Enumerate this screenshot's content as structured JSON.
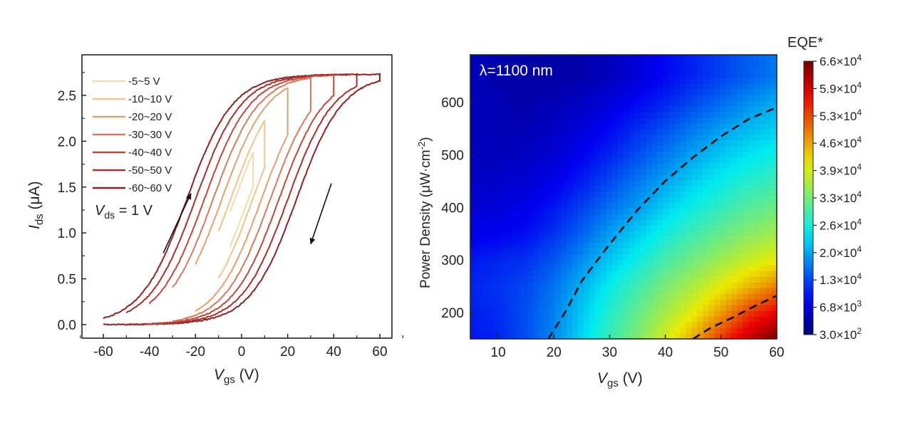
{
  "chart_data": [
    {
      "type": "line",
      "xlabel": {
        "main": "V",
        "sub": "gs",
        "unit": " (V)"
      },
      "ylabel": {
        "main": "I",
        "sub": "ds",
        "unit": " (μA)"
      },
      "xlim": [
        -70,
        70
      ],
      "ylim": [
        -0.08,
        2.85
      ],
      "xticks": [
        "-60",
        "-40",
        "-20",
        "0",
        "20",
        "40",
        "60"
      ],
      "yticks": [
        "0.0",
        "0.5",
        "1.0",
        "1.5",
        "2.0",
        "2.5"
      ],
      "legend_position": "top-left",
      "annotation": {
        "main": "V",
        "sub": "ds",
        "rest": " = 1 V"
      },
      "series": [
        {
          "name": "-5~5 V",
          "sweep": 5,
          "color": "#f2dcae"
        },
        {
          "name": "-10~10 V",
          "sweep": 10,
          "color": "#eec48a"
        },
        {
          "name": "-20~20 V",
          "sweep": 20,
          "color": "#e0a070"
        },
        {
          "name": "-30~30 V",
          "sweep": 30,
          "color": "#d37a5c"
        },
        {
          "name": "-40~40 V",
          "sweep": 40,
          "color": "#c0483a"
        },
        {
          "name": "-50~50 V",
          "sweep": 50,
          "color": "#a8302a"
        },
        {
          "name": "-60~60 V",
          "sweep": 60,
          "color": "#8e2222"
        }
      ],
      "saturation_current": 2.73,
      "arrows": [
        {
          "direction": "forward",
          "from": [
            -34,
            0.78
          ],
          "to": [
            -22,
            1.43
          ]
        },
        {
          "direction": "reverse",
          "from": [
            39,
            1.54
          ],
          "to": [
            30,
            0.88
          ]
        }
      ]
    },
    {
      "type": "heatmap",
      "annotation": "λ=1100 nm",
      "xlabel": {
        "main": "V",
        "sub": "gs",
        "unit": " (V)"
      },
      "ylabel": {
        "pre": "Power Density (μW·cm",
        "sup": "-2",
        "post": ")"
      },
      "xlim": [
        5,
        60
      ],
      "ylim": [
        150,
        690
      ],
      "xticks": [
        "10",
        "20",
        "30",
        "40",
        "50",
        "60"
      ],
      "yticks": [
        "200",
        "300",
        "400",
        "500",
        "600"
      ],
      "colorbar": {
        "title": "EQE*",
        "range": [
          300,
          66000
        ],
        "colormap": "jet",
        "ticks": [
          {
            "m": "6.6×10",
            "e": "4"
          },
          {
            "m": "5.9×10",
            "e": "4"
          },
          {
            "m": "5.3×10",
            "e": "4"
          },
          {
            "m": "4.6×10",
            "e": "4"
          },
          {
            "m": "3.9×10",
            "e": "4"
          },
          {
            "m": "3.3×10",
            "e": "4"
          },
          {
            "m": "2.6×10",
            "e": "4"
          },
          {
            "m": "2.0×10",
            "e": "4"
          },
          {
            "m": "1.3×10",
            "e": "4"
          },
          {
            "m": "6.8×10",
            "e": "3"
          },
          {
            "m": "3.0×10",
            "e": "2"
          }
        ]
      },
      "x": [
        5,
        10,
        15,
        20,
        25,
        30,
        35,
        40,
        45,
        50,
        55,
        60
      ],
      "y": [
        650,
        600,
        550,
        500,
        450,
        400,
        350,
        300,
        250,
        200,
        150
      ],
      "z": [
        [
          5000,
          4000,
          3500,
          3500,
          4000,
          5000,
          7000,
          9000,
          11000,
          13000,
          15000,
          17000
        ],
        [
          5000,
          4500,
          4000,
          4500,
          5500,
          7000,
          9000,
          11000,
          13500,
          16000,
          18500,
          20500
        ],
        [
          5000,
          4500,
          4500,
          5500,
          7000,
          9000,
          11500,
          14000,
          17000,
          19500,
          21500,
          23000
        ],
        [
          5000,
          5000,
          5500,
          6500,
          8500,
          11000,
          14000,
          17000,
          20000,
          22500,
          24500,
          26000
        ],
        [
          5500,
          6000,
          6500,
          8000,
          10500,
          13500,
          17000,
          20000,
          23000,
          25500,
          27500,
          29000
        ],
        [
          6500,
          7000,
          8000,
          10000,
          13000,
          16500,
          19500,
          23000,
          26000,
          28500,
          31000,
          32500
        ],
        [
          8000,
          8500,
          9500,
          12000,
          15500,
          19500,
          23000,
          26500,
          29500,
          32000,
          34500,
          36500
        ],
        [
          10000,
          11000,
          12000,
          14500,
          18500,
          22500,
          26000,
          30000,
          33000,
          36000,
          39000,
          41000
        ],
        [
          11000,
          12000,
          13500,
          16500,
          21000,
          25500,
          29500,
          33500,
          37000,
          41000,
          45000,
          49000
        ],
        [
          10500,
          11500,
          14000,
          17500,
          22500,
          27500,
          32000,
          36500,
          41000,
          47000,
          54000,
          58000
        ],
        [
          10000,
          11000,
          14000,
          18000,
          23500,
          29000,
          34000,
          40000,
          46000,
          54000,
          61000,
          66000
        ]
      ],
      "contours": [
        [
          [
            19,
            150
          ],
          [
            22,
            200
          ],
          [
            25,
            260
          ],
          [
            30,
            330
          ],
          [
            35,
            395
          ],
          [
            40,
            450
          ],
          [
            45,
            495
          ],
          [
            50,
            535
          ],
          [
            55,
            568
          ],
          [
            60,
            590
          ]
        ],
        [
          [
            45,
            150
          ],
          [
            48,
            170
          ],
          [
            52,
            190
          ],
          [
            56,
            212
          ],
          [
            60,
            232
          ]
        ]
      ]
    }
  ]
}
